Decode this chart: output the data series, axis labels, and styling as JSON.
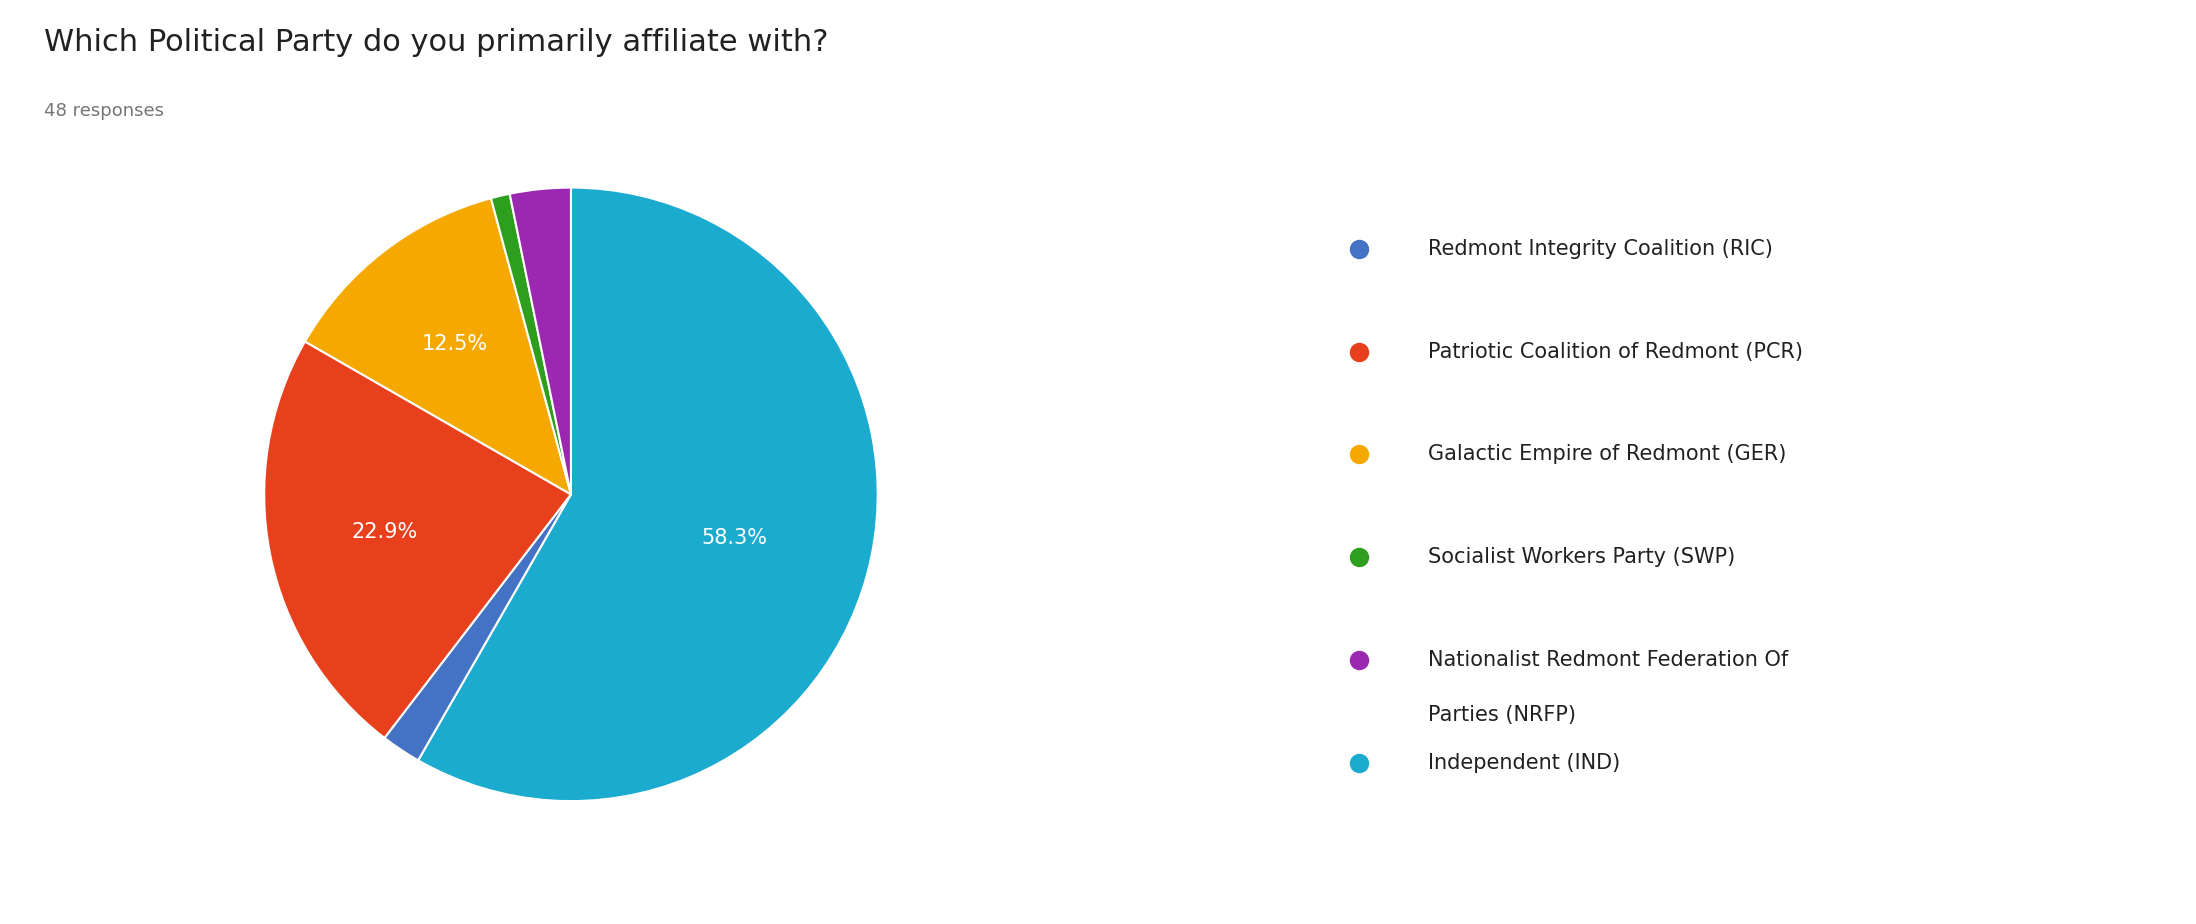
{
  "title": "Which Political Party do you primarily affiliate with?",
  "subtitle": "48 responses",
  "values": [
    58.3,
    2.1,
    22.9,
    12.5,
    1.0,
    3.2
  ],
  "colors": [
    "#1AABCF",
    "#4472C4",
    "#E8401C",
    "#F5A800",
    "#2E9E1F",
    "#9C27B0"
  ],
  "pct_labels": [
    "58.3%",
    "",
    "22.9%",
    "12.5%",
    "",
    ""
  ],
  "legend_labels": [
    "Redmont Integrity Coalition (RIC)",
    "Patriotic Coalition of Redmont (PCR)",
    "Galactic Empire of Redmont (GER)",
    "Socialist Workers Party (SWP)",
    "Nationalist Redmont Federation Of\nParties (NRFP)",
    "Independent (IND)"
  ],
  "legend_colors": [
    "#4472C4",
    "#E8401C",
    "#F5A800",
    "#2E9E1F",
    "#9C27B0",
    "#1AABCF"
  ],
  "title_fontsize": 22,
  "subtitle_fontsize": 13,
  "legend_fontsize": 15,
  "pct_fontsize": 15,
  "background_color": "#ffffff",
  "startangle": 90,
  "title_color": "#212121",
  "subtitle_color": "#757575",
  "legend_text_color": "#212121"
}
